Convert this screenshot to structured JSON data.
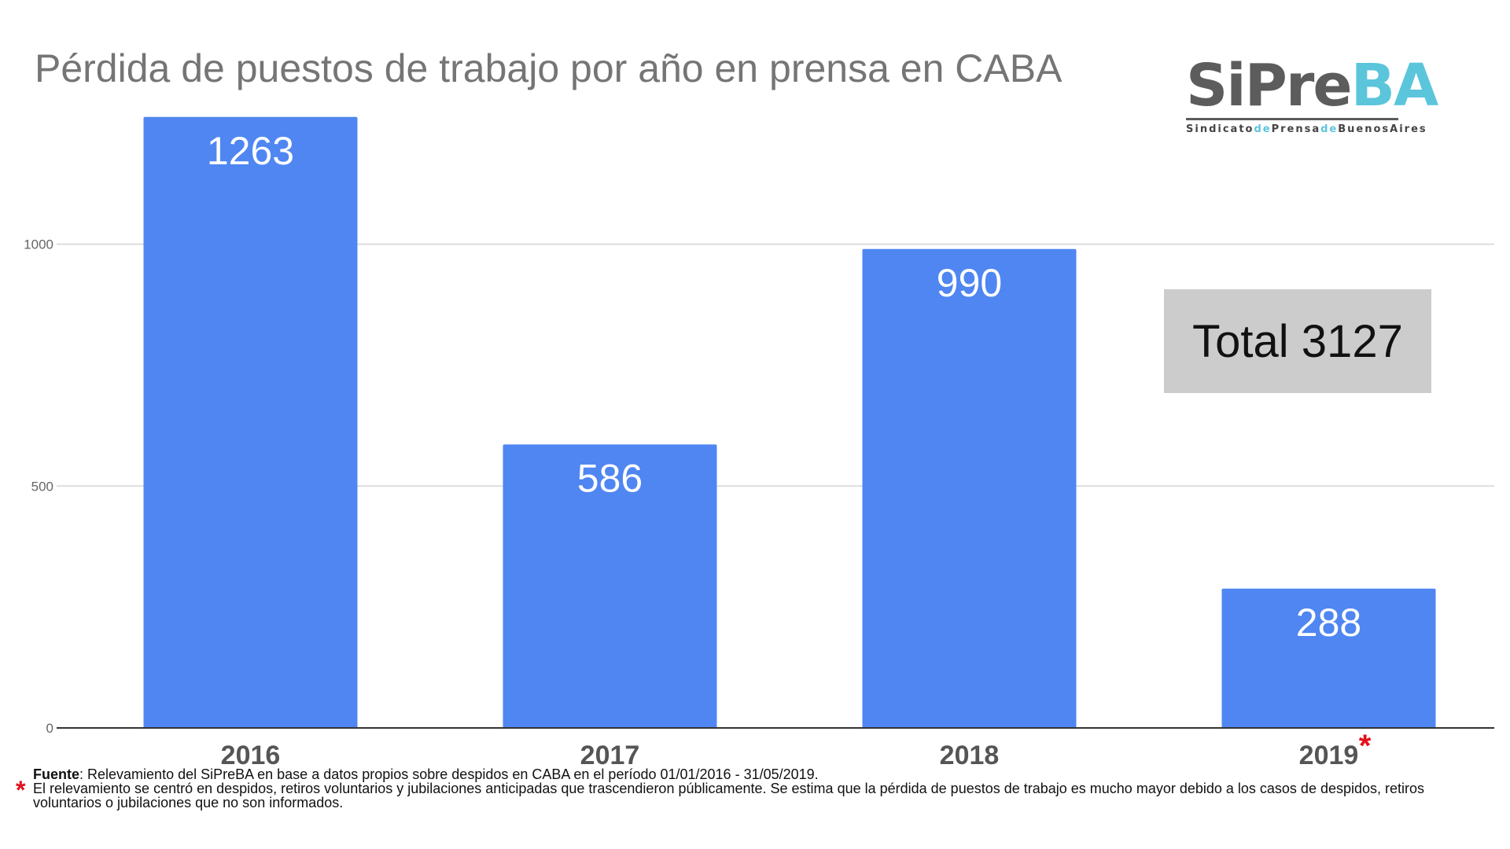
{
  "title": "Pérdida de puestos de trabajo por año en prensa en CABA",
  "logo": {
    "name_dark": "SiPre",
    "name_light": "BA",
    "sub": [
      "Sindicato",
      "de",
      "Prensa",
      "de",
      "BuenosAires"
    ]
  },
  "total_label": "Total 3127",
  "chart_data": {
    "type": "bar",
    "title": "Pérdida de puestos de trabajo por año en prensa en CABA",
    "categories": [
      "2016",
      "2017",
      "2018",
      "2019"
    ],
    "values": [
      1263,
      586,
      990,
      288
    ],
    "data_labels": [
      "1263",
      "586",
      "990",
      "288"
    ],
    "y_ticks": [
      0,
      500,
      1000
    ],
    "ylim": [
      0,
      1300
    ],
    "grid": true,
    "bar_color": "#4f86f2",
    "annotation_marker": "*",
    "annotated_category": "2019"
  },
  "footnote": {
    "source_label": "Fuente",
    "source_text": ": Relevamiento del SiPreBA en base a datos propios sobre despidos en CABA en el período 01/01/2016 - 31/05/2019.",
    "marker": "*",
    "note_text": "El relevamiento se centró en despidos, retiros voluntarios y jubilaciones anticipadas que trascendieron públicamente. Se estima que la pérdida de puestos de trabajo es mucho mayor debido a los casos de despidos, retiros voluntarios o jubilaciones que no son informados."
  }
}
